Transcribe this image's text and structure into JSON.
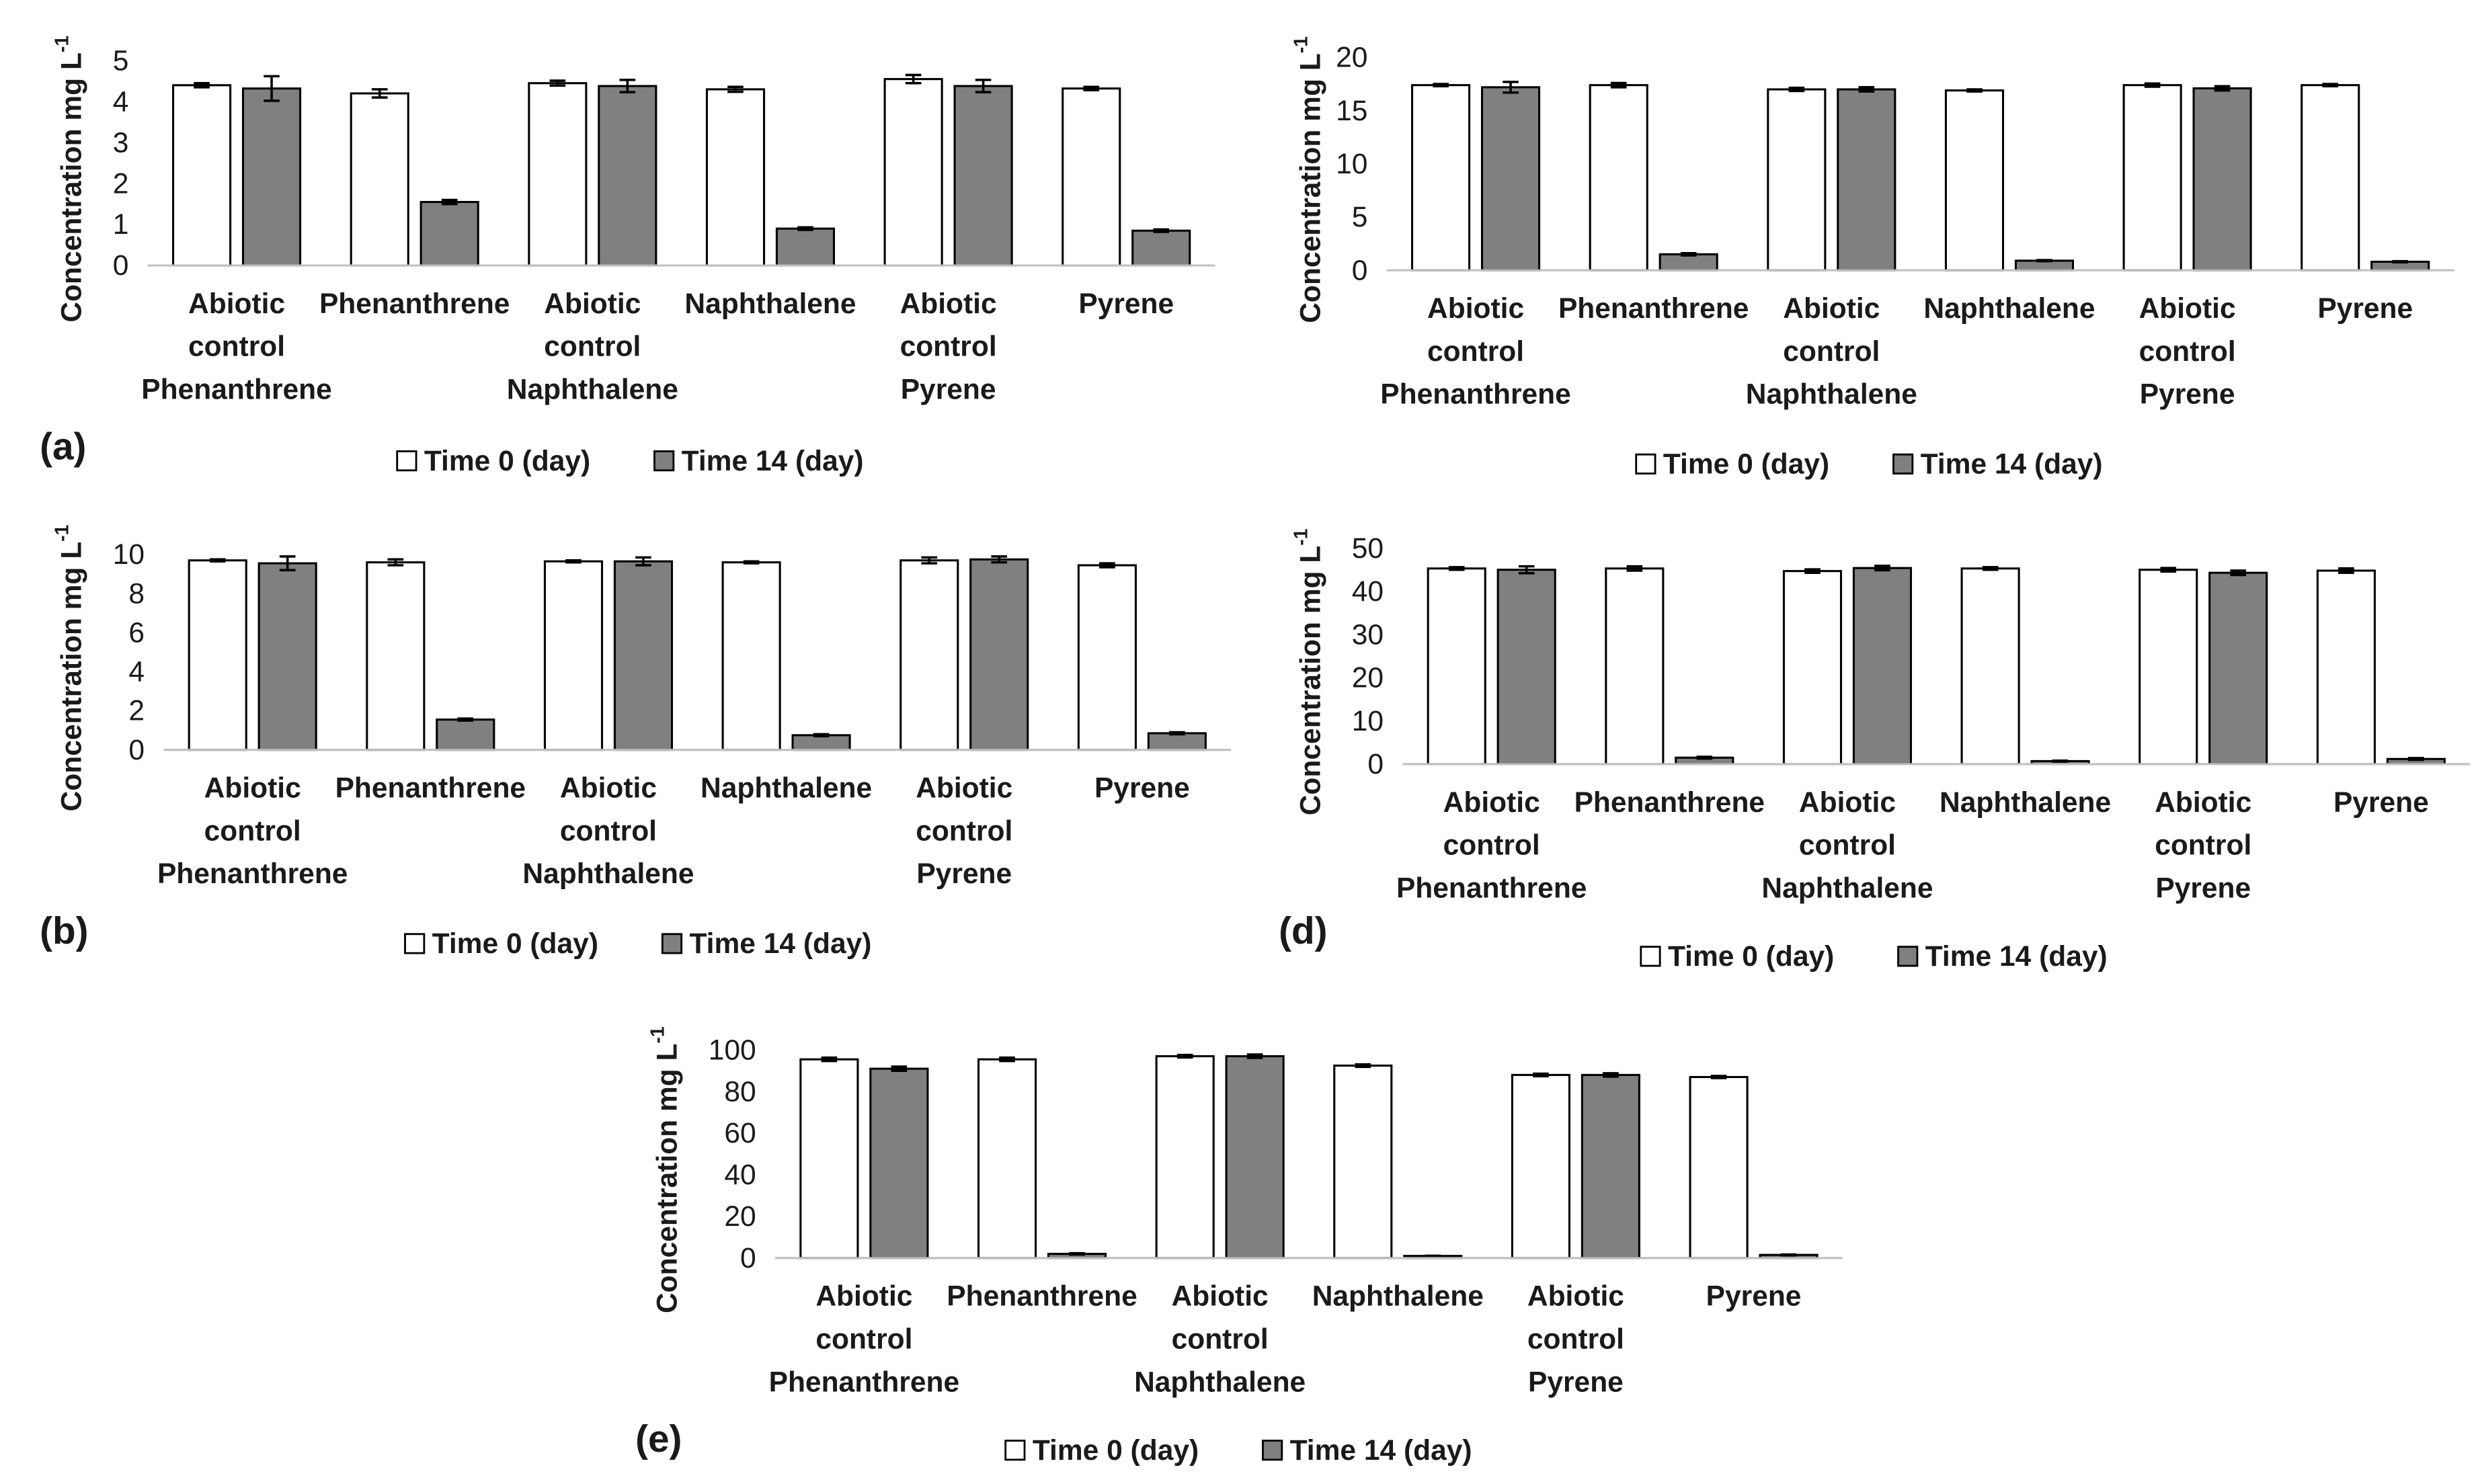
{
  "chart_data": [
    {
      "type": "bar",
      "panel_label": "(a)",
      "y_label": {
        "text": "Concentration mg L",
        "superscript": "-1"
      },
      "categories": [
        [
          "Abiotic",
          "control",
          "Phenanthrene"
        ],
        [
          "Phenanthrene"
        ],
        [
          "Abiotic",
          "control",
          "Naphthalene"
        ],
        [
          "Naphthalene"
        ],
        [
          "Abiotic",
          "control",
          "Pyrene"
        ],
        [
          "Pyrene"
        ]
      ],
      "series": [
        {
          "name": "Time 0 (day)",
          "color": "#ffffff",
          "values": [
            4.4,
            4.2,
            4.45,
            4.3,
            4.55,
            4.32
          ],
          "errors": [
            0.05,
            0.1,
            0.06,
            0.06,
            0.1,
            0.04
          ]
        },
        {
          "name": "Time 14 (day)",
          "color": "#808080",
          "values": [
            4.32,
            1.55,
            4.38,
            0.9,
            4.38,
            0.85
          ],
          "errors": [
            0.3,
            0.05,
            0.15,
            0.03,
            0.15,
            0.03
          ]
        }
      ],
      "ylim": [
        0,
        5
      ],
      "yticks": [
        0,
        1,
        2,
        3,
        4,
        5
      ]
    },
    {
      "type": "bar",
      "y_label": {
        "text": "Concentration mg L",
        "superscript": "-1"
      },
      "categories": [
        [
          "Abiotic",
          "control",
          "Phenanthrene"
        ],
        [
          "Phenanthrene"
        ],
        [
          "Abiotic",
          "control",
          "Naphthalene"
        ],
        [
          "Naphthalene"
        ],
        [
          "Abiotic",
          "control",
          "Pyrene"
        ],
        [
          "Pyrene"
        ]
      ],
      "series": [
        {
          "name": "Time 0 (day)",
          "color": "#ffffff",
          "values": [
            17.4,
            17.4,
            17.0,
            16.9,
            17.4,
            17.4
          ],
          "errors": [
            0.1,
            0.2,
            0.15,
            0.1,
            0.15,
            0.1
          ]
        },
        {
          "name": "Time 14 (day)",
          "color": "#808080",
          "values": [
            17.2,
            1.5,
            17.0,
            0.9,
            17.1,
            0.8
          ],
          "errors": [
            0.5,
            0.1,
            0.2,
            0.05,
            0.2,
            0.05
          ]
        }
      ],
      "ylim": [
        0,
        20
      ],
      "yticks": [
        0,
        5,
        10,
        15,
        20
      ]
    },
    {
      "type": "bar",
      "panel_label": "(b)",
      "y_label": {
        "text": "Concentration mg L",
        "superscript": "-1"
      },
      "categories": [
        [
          "Abiotic",
          "control",
          "Phenanthrene"
        ],
        [
          "Phenanthrene"
        ],
        [
          "Abiotic",
          "control",
          "Naphthalene"
        ],
        [
          "Naphthalene"
        ],
        [
          "Abiotic",
          "control",
          "Pyrene"
        ],
        [
          "Pyrene"
        ]
      ],
      "series": [
        {
          "name": "Time 0 (day)",
          "color": "#ffffff",
          "values": [
            9.7,
            9.6,
            9.65,
            9.6,
            9.7,
            9.45
          ],
          "errors": [
            0.05,
            0.15,
            0.05,
            0.05,
            0.15,
            0.1
          ]
        },
        {
          "name": "Time 14 (day)",
          "color": "#808080",
          "values": [
            9.55,
            1.55,
            9.65,
            0.75,
            9.75,
            0.85
          ],
          "errors": [
            0.35,
            0.05,
            0.2,
            0.05,
            0.15,
            0.05
          ]
        }
      ],
      "ylim": [
        0,
        10
      ],
      "yticks": [
        0,
        2,
        4,
        6,
        8,
        10
      ]
    },
    {
      "type": "bar",
      "panel_label": "(d)",
      "y_label": {
        "text": "Concentration mg L",
        "superscript": "-1"
      },
      "categories": [
        [
          "Abiotic",
          "control",
          "Phenanthrene"
        ],
        [
          "Phenanthrene"
        ],
        [
          "Abiotic",
          "control",
          "Naphthalene"
        ],
        [
          "Naphthalene"
        ],
        [
          "Abiotic",
          "control",
          "Pyrene"
        ],
        [
          "Pyrene"
        ]
      ],
      "series": [
        {
          "name": "Time 0 (day)",
          "color": "#ffffff",
          "values": [
            45.3,
            45.3,
            44.7,
            45.3,
            45,
            44.8
          ],
          "errors": [
            0.3,
            0.5,
            0.4,
            0.3,
            0.4,
            0.5
          ]
        },
        {
          "name": "Time 14 (day)",
          "color": "#808080",
          "values": [
            45,
            1.5,
            45.4,
            0.7,
            44.3,
            1.2
          ],
          "errors": [
            0.8,
            0.2,
            0.5,
            0.1,
            0.5,
            0.2
          ]
        }
      ],
      "ylim": [
        0,
        50
      ],
      "yticks": [
        0,
        10,
        20,
        30,
        40,
        50
      ]
    },
    {
      "type": "bar",
      "panel_label": "(e)",
      "y_label": {
        "text": "Concentration mg L",
        "superscript": "-1"
      },
      "categories": [
        [
          "Abiotic",
          "control",
          "Phenanthrene"
        ],
        [
          "Phenanthrene"
        ],
        [
          "Abiotic",
          "control",
          "Naphthalene"
        ],
        [
          "Naphthalene"
        ],
        [
          "Abiotic",
          "control",
          "Pyrene"
        ],
        [
          "Pyrene"
        ]
      ],
      "series": [
        {
          "name": "Time 0 (day)",
          "color": "#ffffff",
          "values": [
            95.5,
            95.5,
            97,
            92.5,
            88,
            87
          ],
          "errors": [
            0.8,
            0.8,
            0.6,
            0.6,
            0.6,
            0.5
          ]
        },
        {
          "name": "Time 14 (day)",
          "color": "#808080",
          "values": [
            91,
            2,
            97,
            1,
            88,
            1.5
          ],
          "errors": [
            1.0,
            0.3,
            0.8,
            0.1,
            0.8,
            0.2
          ]
        }
      ],
      "ylim": [
        0,
        100
      ],
      "yticks": [
        0,
        20,
        40,
        60,
        80,
        100
      ]
    }
  ]
}
